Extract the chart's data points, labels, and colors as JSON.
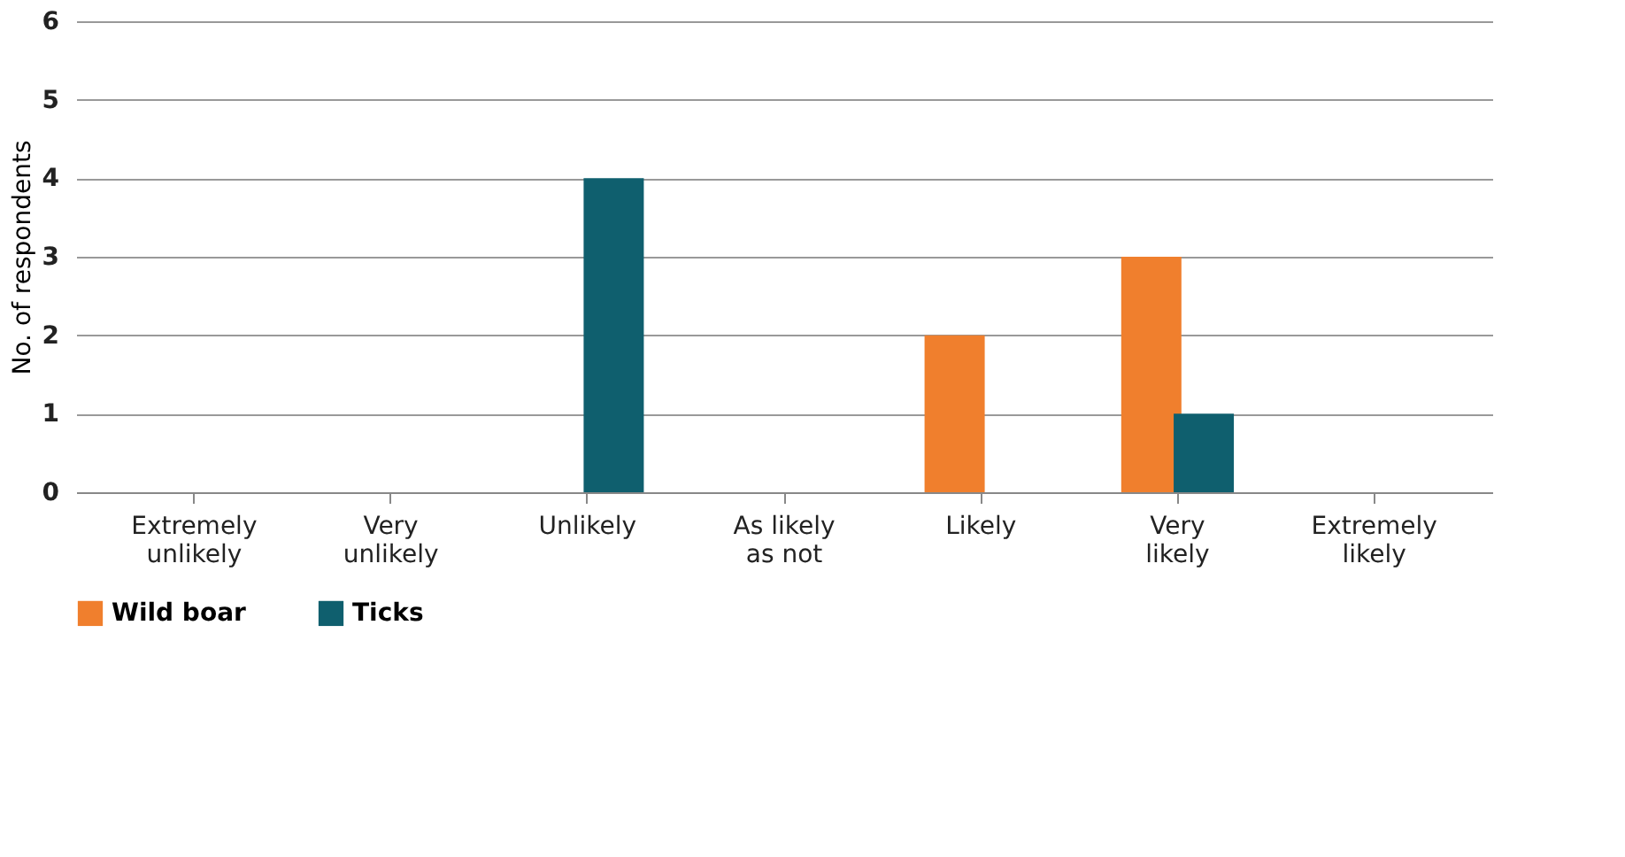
{
  "chart_data": {
    "type": "bar",
    "ylabel": "No. of respondents",
    "categories": [
      "Extremely unlikely",
      "Very unlikely",
      "Unlikely",
      "As likely as not",
      "Likely",
      "Very likely",
      "Extremely likely"
    ],
    "series": [
      {
        "name": "Wild boar",
        "color": "#f07f2d",
        "values": [
          0,
          0,
          0,
          0,
          2,
          3,
          0
        ]
      },
      {
        "name": "Ticks",
        "color": "#0f5f6e",
        "values": [
          0,
          0,
          4,
          0,
          0,
          1,
          0
        ]
      }
    ],
    "ylim": [
      0,
      6
    ],
    "yticks": [
      0,
      1,
      2,
      3,
      4,
      5,
      6
    ],
    "grid": "y",
    "legend": "bottom"
  }
}
